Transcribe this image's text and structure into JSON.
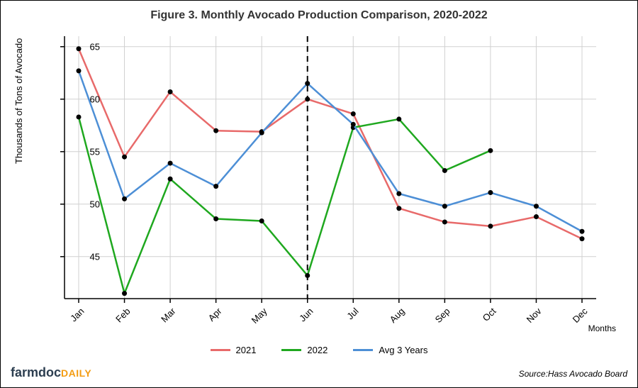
{
  "chart": {
    "type": "line",
    "title": "Figure 3. Monthly Avocado Production Comparison, 2020-2022",
    "title_fontsize": 16,
    "title_color": "#333333",
    "xlabel": "Months",
    "ylabel": "Thousands of Tons of Avocado",
    "label_fontsize": 13,
    "background_color": "#ffffff",
    "grid_color": "#d0d0d0",
    "axis_color": "#000000",
    "categories": [
      "Jan",
      "Feb",
      "Mar",
      "Apr",
      "May",
      "Jun",
      "Jul",
      "Aug",
      "Sep",
      "Oct",
      "Nov",
      "Dec"
    ],
    "ylim": [
      41,
      66
    ],
    "yticks": [
      45,
      50,
      55,
      60,
      65
    ],
    "x_tick_rotation": -45,
    "vline_index": 5,
    "vline_style": "dashed",
    "vline_color": "#000000",
    "vline_width": 2,
    "marker": {
      "shape": "circle",
      "radius": 3.5,
      "fill": "#000000"
    },
    "line_width": 2.5,
    "series": [
      {
        "name": "2021",
        "color": "#e86a6a",
        "values": [
          64.8,
          54.5,
          60.7,
          57.0,
          56.9,
          60.0,
          58.6,
          49.6,
          48.3,
          47.9,
          48.8,
          46.7
        ]
      },
      {
        "name": "2022",
        "color": "#1fa81f",
        "values": [
          58.3,
          41.5,
          52.4,
          48.6,
          48.4,
          43.2,
          57.3,
          58.1,
          53.2,
          55.1,
          null,
          null
        ]
      },
      {
        "name": "Avg 3 Years",
        "color": "#4d8fd6",
        "values": [
          62.7,
          50.5,
          53.9,
          51.7,
          56.8,
          61.5,
          57.6,
          51.0,
          49.8,
          51.1,
          49.8,
          47.4
        ]
      }
    ]
  },
  "footer": {
    "logo_parts": {
      "farm": "farm",
      "doc": "doc",
      "daily": "DAILY"
    },
    "source": "Source:Hass Avocado Board"
  }
}
